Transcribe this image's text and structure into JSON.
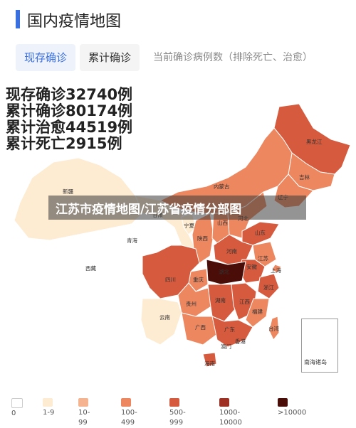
{
  "header": {
    "title": "国内疫情地图"
  },
  "tabs": [
    {
      "label": "现存确诊",
      "active": true
    },
    {
      "label": "累计确诊",
      "active": false
    }
  ],
  "tab_note": "当前确诊病例数（排除死亡、治愈）",
  "stats": {
    "current": "现存确诊32740例",
    "total": "累计确诊80174例",
    "cured": "累计治愈44519例",
    "dead": "累计死亡2915例"
  },
  "banner": "江苏市疫情地图/江苏省疫情分部图",
  "map": {
    "provinces": {
      "heilongjiang": "黑龙江",
      "jilin": "吉林",
      "liaoning": "辽宁",
      "neimenggu": "内蒙古",
      "xinjiang": "新疆",
      "xizang": "西藏",
      "qinghai": "青海",
      "gansu": "甘肃",
      "ningxia": "宁夏",
      "shaanxi": "陕西",
      "shanxi": "山西",
      "hebei": "河北",
      "shandong": "山东",
      "henan": "河南",
      "jiangsu": "江苏",
      "anhui": "安徽",
      "shanghai": "上海",
      "zhejiang": "浙江",
      "hubei": "湖北",
      "chongqing": "重庆",
      "sichuan": "四川",
      "guizhou": "贵州",
      "hunan": "湖南",
      "jiangxi": "江西",
      "fujian": "福建",
      "yunnan": "云南",
      "guangxi": "广西",
      "guangdong": "广东",
      "taiwan": "台湾",
      "hainan": "海南",
      "xianggang": "香港",
      "aomen": "澳门",
      "nanhai": "南海诸岛"
    },
    "colors": {
      "c0": "#ffffff",
      "c1": "#fdebd2",
      "c2": "#f5b48f",
      "c3": "#ec8760",
      "c4": "#d65a3d",
      "c5": "#9e3124",
      "c6": "#4a0d08"
    }
  },
  "legend": [
    {
      "label": "0",
      "color": "#ffffff"
    },
    {
      "label": "1-9",
      "color": "#fdebd2"
    },
    {
      "label": "10-99",
      "color": "#f5b48f"
    },
    {
      "label": "100-499",
      "color": "#ec8760"
    },
    {
      "label": "500-999",
      "color": "#d65a3d"
    },
    {
      "label": "1000-10000",
      "color": "#9e3124"
    },
    {
      "label": ">10000",
      "color": "#4a0d08"
    }
  ]
}
